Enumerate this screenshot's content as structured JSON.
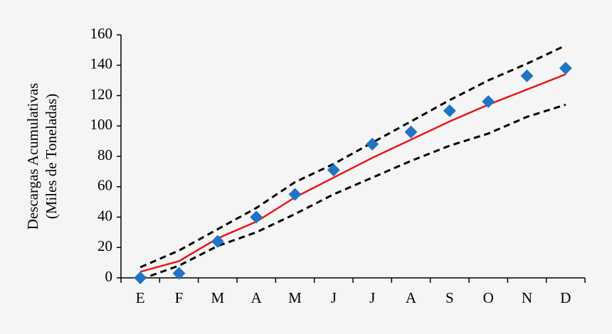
{
  "chart_data": {
    "type": "line",
    "categories": [
      "E",
      "F",
      "M",
      "A",
      "M",
      "J",
      "J",
      "A",
      "S",
      "O",
      "N",
      "D"
    ],
    "ylabel": [
      "Descargas Acumulativas",
      "(Miles de Toneladas)"
    ],
    "ylim": [
      0,
      160
    ],
    "yticks": [
      0,
      20,
      40,
      60,
      80,
      100,
      120,
      140,
      160
    ],
    "series": [
      {
        "color": "#000000",
        "style": "dashed",
        "values": [
          7,
          18,
          32,
          46,
          63,
          75,
          89,
          103,
          117,
          130,
          141,
          153
        ]
      },
      {
        "color": "#000000",
        "style": "dashed",
        "values": [
          -1,
          8,
          21,
          30,
          42,
          55,
          66,
          77,
          87,
          95,
          106,
          114
        ]
      },
      {
        "color": "#e8171c",
        "style": "solid",
        "values": [
          4,
          11,
          26,
          37,
          53,
          66,
          79,
          91,
          103,
          114,
          124,
          134
        ]
      },
      {
        "color": "#1f74c4",
        "style": "diamond",
        "values": [
          0,
          3,
          24,
          40,
          55,
          71,
          88,
          96,
          110,
          116,
          133,
          138
        ]
      }
    ]
  }
}
